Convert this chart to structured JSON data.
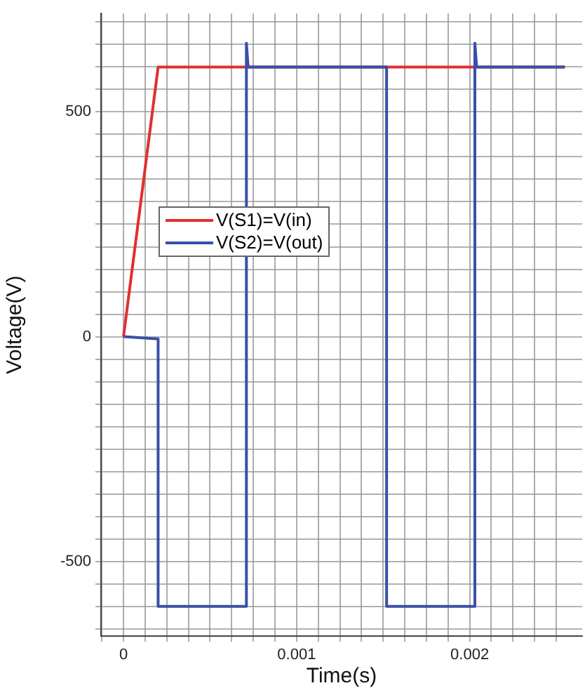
{
  "chart_data": {
    "type": "line",
    "xlabel": "Time(s)",
    "ylabel": "Voltage(V)",
    "xlim": [
      -0.00013,
      0.00265
    ],
    "ylim": [
      -666,
      719
    ],
    "xticks": [
      {
        "value": -0.000125,
        "label": null
      },
      0,
      {
        "value": 0.000125,
        "label": null
      },
      {
        "value": 0.00025,
        "label": null
      },
      {
        "value": 0.000375,
        "label": null
      },
      {
        "value": 0.0005,
        "label": null
      },
      {
        "value": 0.000625,
        "label": null
      },
      {
        "value": 0.00075,
        "label": null
      },
      {
        "value": 0.000875,
        "label": null
      },
      0.001,
      {
        "value": 0.001125,
        "label": null
      },
      {
        "value": 0.00125,
        "label": null
      },
      {
        "value": 0.001375,
        "label": null
      },
      {
        "value": 0.0015,
        "label": null
      },
      {
        "value": 0.001625,
        "label": null
      },
      {
        "value": 0.00175,
        "label": null
      },
      {
        "value": 0.001875,
        "label": null
      },
      0.002,
      {
        "value": 0.002125,
        "label": null
      },
      {
        "value": 0.00225,
        "label": null
      },
      {
        "value": 0.002375,
        "label": null
      },
      {
        "value": 0.0025,
        "label": null
      }
    ],
    "yticks": [
      {
        "value": -650,
        "label": null
      },
      {
        "value": -600,
        "label": null
      },
      {
        "value": -550,
        "label": null
      },
      -500,
      {
        "value": -450,
        "label": null
      },
      {
        "value": -400,
        "label": null
      },
      {
        "value": -350,
        "label": null
      },
      {
        "value": -300,
        "label": null
      },
      {
        "value": -250,
        "label": null
      },
      {
        "value": -200,
        "label": null
      },
      {
        "value": -150,
        "label": null
      },
      {
        "value": -100,
        "label": null
      },
      {
        "value": -50,
        "label": null
      },
      0,
      {
        "value": 50,
        "label": null
      },
      {
        "value": 100,
        "label": null
      },
      {
        "value": 150,
        "label": null
      },
      {
        "value": 200,
        "label": null
      },
      {
        "value": 250,
        "label": null
      },
      {
        "value": 300,
        "label": null
      },
      {
        "value": 350,
        "label": null
      },
      {
        "value": 400,
        "label": null
      },
      {
        "value": 450,
        "label": null
      },
      500,
      {
        "value": 550,
        "label": null
      },
      {
        "value": 600,
        "label": null
      },
      {
        "value": 650,
        "label": null
      },
      {
        "value": 700,
        "label": null
      }
    ],
    "grid": true,
    "legend": "left",
    "line_style": "solid",
    "marker": "none",
    "series": [
      {
        "name": "V(S1)=V(in)",
        "color": "#e03030",
        "x": [
          0,
          0.0002,
          0.00255
        ],
        "values": [
          0,
          600,
          600
        ]
      },
      {
        "name": "V(S2)=V(out)",
        "color": "#3a4fa8",
        "x": [
          0,
          0.0002,
          0.0002,
          0.00071,
          0.00071,
          0.00072,
          0.00152,
          0.00152,
          0.00203,
          0.00203,
          0.00204,
          0.00255
        ],
        "values": [
          0,
          -5,
          -600,
          -600,
          653,
          600,
          600,
          -600,
          -600,
          653,
          600,
          600
        ]
      }
    ]
  }
}
